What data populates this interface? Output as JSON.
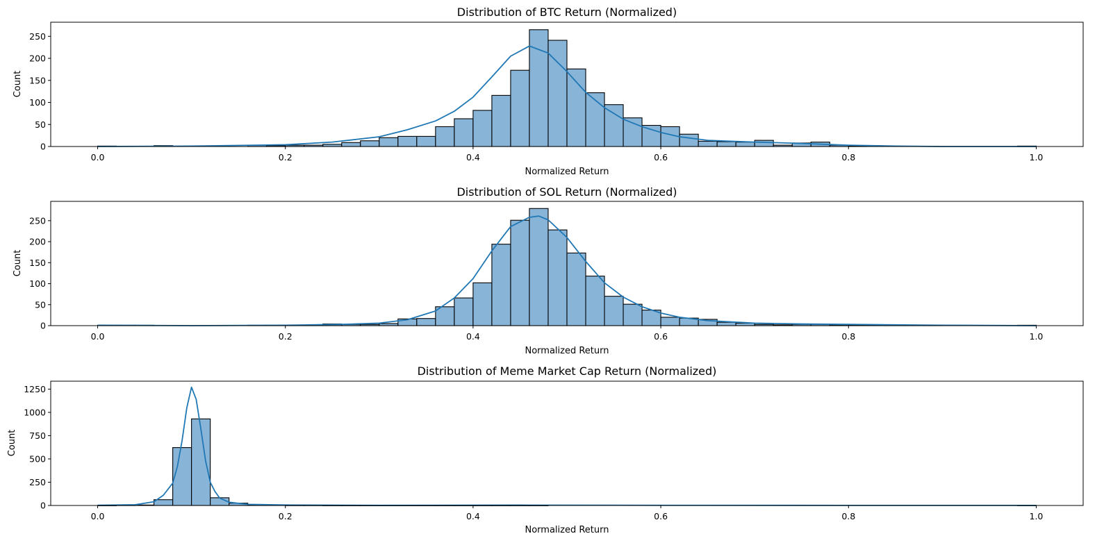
{
  "chart_data": [
    {
      "type": "histogram",
      "title": "Distribution of BTC Return (Normalized)",
      "xlabel": "Normalized Return",
      "ylabel": "Count",
      "xlim": [
        -0.05,
        1.05
      ],
      "ylim": [
        0,
        282
      ],
      "xticks": [
        0.0,
        0.2,
        0.4,
        0.6,
        0.8,
        1.0
      ],
      "xtick_labels": [
        "0.0",
        "0.2",
        "0.4",
        "0.6",
        "0.8",
        "1.0"
      ],
      "yticks": [
        0,
        50,
        100,
        150,
        200,
        250
      ],
      "ytick_labels": [
        "0",
        "50",
        "100",
        "150",
        "200",
        "250"
      ],
      "bin_width": 0.02,
      "bin_starts": [
        0.0,
        0.02,
        0.04,
        0.06,
        0.08,
        0.1,
        0.12,
        0.14,
        0.16,
        0.18,
        0.2,
        0.22,
        0.24,
        0.26,
        0.28,
        0.3,
        0.32,
        0.34,
        0.36,
        0.38,
        0.4,
        0.42,
        0.44,
        0.46,
        0.48,
        0.5,
        0.52,
        0.54,
        0.56,
        0.58,
        0.6,
        0.62,
        0.64,
        0.66,
        0.68,
        0.7,
        0.72,
        0.74,
        0.76,
        0.78,
        0.8,
        0.82,
        0.84,
        0.86,
        0.88,
        0.9,
        0.92,
        0.94,
        0.96,
        0.98
      ],
      "counts": [
        1,
        0,
        0,
        2,
        0,
        0,
        0,
        0,
        3,
        2,
        3,
        3,
        5,
        9,
        13,
        20,
        23,
        23,
        45,
        63,
        82,
        116,
        173,
        265,
        241,
        176,
        122,
        95,
        65,
        48,
        45,
        28,
        12,
        11,
        10,
        14,
        3,
        8,
        10,
        3,
        1,
        0,
        0,
        0,
        0,
        0,
        0,
        0,
        0,
        1
      ],
      "kde_x": [
        0.0,
        0.1,
        0.2,
        0.25,
        0.3,
        0.33,
        0.36,
        0.38,
        0.4,
        0.42,
        0.44,
        0.46,
        0.48,
        0.5,
        0.52,
        0.54,
        0.56,
        0.58,
        0.6,
        0.62,
        0.65,
        0.7,
        0.75,
        0.8,
        0.85,
        0.9,
        1.0
      ],
      "kde_y": [
        0,
        1,
        4,
        10,
        22,
        38,
        58,
        80,
        112,
        158,
        205,
        228,
        212,
        170,
        123,
        88,
        62,
        45,
        32,
        22,
        14,
        10,
        7,
        3,
        1,
        0,
        0
      ],
      "bar_color": "#88b4d8",
      "line_color": "#1f77b4"
    },
    {
      "type": "histogram",
      "title": "Distribution of SOL Return (Normalized)",
      "xlabel": "Normalized Return",
      "ylabel": "Count",
      "xlim": [
        -0.05,
        1.05
      ],
      "ylim": [
        0,
        296
      ],
      "xticks": [
        0.0,
        0.2,
        0.4,
        0.6,
        0.8,
        1.0
      ],
      "xtick_labels": [
        "0.0",
        "0.2",
        "0.4",
        "0.6",
        "0.8",
        "1.0"
      ],
      "yticks": [
        0,
        50,
        100,
        150,
        200,
        250
      ],
      "ytick_labels": [
        "0",
        "50",
        "100",
        "150",
        "200",
        "250"
      ],
      "bin_width": 0.02,
      "bin_starts": [
        0.0,
        0.02,
        0.04,
        0.06,
        0.08,
        0.1,
        0.12,
        0.14,
        0.16,
        0.18,
        0.2,
        0.22,
        0.24,
        0.26,
        0.28,
        0.3,
        0.32,
        0.34,
        0.36,
        0.38,
        0.4,
        0.42,
        0.44,
        0.46,
        0.48,
        0.5,
        0.52,
        0.54,
        0.56,
        0.58,
        0.6,
        0.62,
        0.64,
        0.66,
        0.68,
        0.7,
        0.72,
        0.74,
        0.76,
        0.78,
        0.8,
        0.82,
        0.84,
        0.86,
        0.88,
        0.9,
        0.92,
        0.94,
        0.96,
        0.98
      ],
      "counts": [
        1,
        1,
        1,
        0,
        0,
        0,
        0,
        0,
        1,
        1,
        1,
        1,
        4,
        3,
        3,
        5,
        16,
        17,
        45,
        66,
        102,
        194,
        251,
        279,
        228,
        173,
        118,
        70,
        51,
        37,
        20,
        18,
        15,
        8,
        6,
        3,
        2,
        3,
        3,
        2,
        1,
        1,
        1,
        1,
        1,
        0,
        0,
        0,
        0,
        1
      ],
      "kde_x": [
        0.0,
        0.1,
        0.2,
        0.26,
        0.3,
        0.33,
        0.36,
        0.38,
        0.4,
        0.42,
        0.44,
        0.46,
        0.47,
        0.48,
        0.5,
        0.52,
        0.54,
        0.56,
        0.58,
        0.6,
        0.62,
        0.65,
        0.7,
        0.75,
        0.8,
        0.9,
        1.0
      ],
      "kde_y": [
        1,
        0,
        1,
        3,
        6,
        14,
        35,
        66,
        112,
        178,
        236,
        258,
        261,
        252,
        210,
        153,
        102,
        68,
        45,
        30,
        20,
        12,
        6,
        4,
        3,
        1,
        0
      ],
      "bar_color": "#88b4d8",
      "line_color": "#1f77b4"
    },
    {
      "type": "histogram",
      "title": "Distribution of Meme Market Cap Return (Normalized)",
      "xlabel": "Normalized Return",
      "ylabel": "Count",
      "xlim": [
        -0.05,
        1.05
      ],
      "ylim": [
        0,
        1335
      ],
      "xticks": [
        0.0,
        0.2,
        0.4,
        0.6,
        0.8,
        1.0
      ],
      "xtick_labels": [
        "0.0",
        "0.2",
        "0.4",
        "0.6",
        "0.8",
        "1.0"
      ],
      "yticks": [
        0,
        250,
        500,
        750,
        1000,
        1250
      ],
      "ytick_labels": [
        "0",
        "250",
        "500",
        "750",
        "1000",
        "1250"
      ],
      "bin_width": 0.02,
      "bin_starts": [
        0.0,
        0.02,
        0.04,
        0.06,
        0.08,
        0.1,
        0.12,
        0.14,
        0.16,
        0.18,
        0.2,
        0.22,
        0.24,
        0.26,
        0.28,
        0.3,
        0.32,
        0.34,
        0.36,
        0.38,
        0.4,
        0.42,
        0.44,
        0.46,
        0.48,
        0.5,
        0.52,
        0.54,
        0.56,
        0.58,
        0.6,
        0.62,
        0.64,
        0.66,
        0.68,
        0.7,
        0.72,
        0.74,
        0.76,
        0.78,
        0.8,
        0.82,
        0.84,
        0.86,
        0.88,
        0.9,
        0.92,
        0.94,
        0.96,
        0.98
      ],
      "counts": [
        1,
        3,
        5,
        62,
        622,
        930,
        83,
        25,
        8,
        4,
        2,
        2,
        1,
        1,
        1,
        1,
        1,
        1,
        1,
        1,
        1,
        1,
        1,
        1,
        0,
        0,
        0,
        0,
        0,
        0,
        0,
        0,
        0,
        0,
        0,
        0,
        0,
        0,
        0,
        0,
        0,
        0,
        0,
        0,
        0,
        0,
        0,
        0,
        0,
        1
      ],
      "kde_x": [
        0.0,
        0.04,
        0.06,
        0.07,
        0.08,
        0.085,
        0.09,
        0.095,
        0.1,
        0.105,
        0.11,
        0.115,
        0.12,
        0.125,
        0.13,
        0.14,
        0.16,
        0.2,
        0.3,
        0.45,
        0.6,
        0.8,
        1.0
      ],
      "kde_y": [
        3,
        8,
        40,
        110,
        240,
        420,
        700,
        1050,
        1270,
        1140,
        820,
        480,
        250,
        150,
        80,
        35,
        12,
        5,
        2,
        4,
        2,
        1,
        1
      ],
      "bar_color": "#88b4d8",
      "line_color": "#1f77b4"
    }
  ]
}
